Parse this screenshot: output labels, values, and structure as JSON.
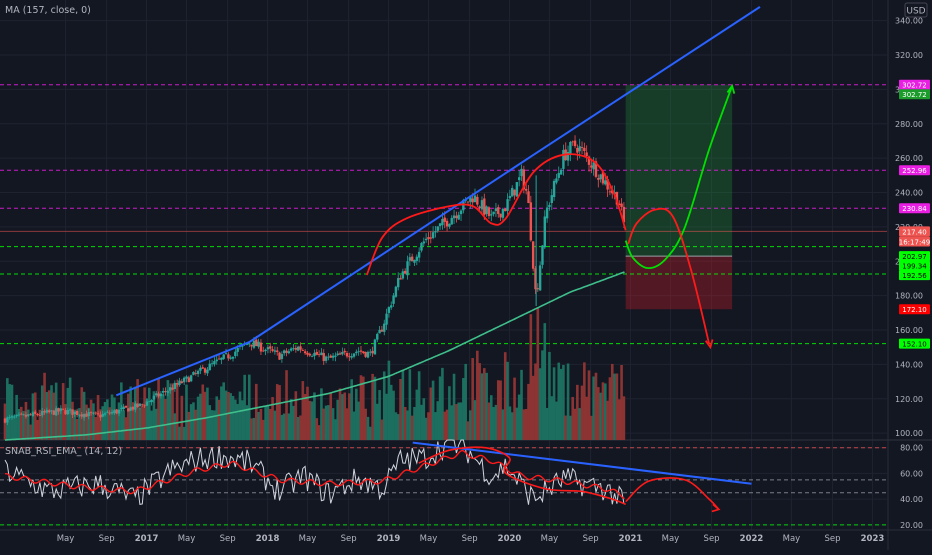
{
  "chart_data": {
    "type": "candlestick",
    "main_pane": {
      "ma_label": "MA (157, close, 0)",
      "currency": "USD",
      "y_ticks": [
        100,
        120,
        140,
        160,
        180,
        200,
        220,
        240,
        260,
        280,
        300,
        320,
        340
      ],
      "y_tick_labels": [
        "100.00",
        "120.00",
        "140.00",
        "160.00",
        "180.00",
        "200.00",
        "220.00",
        "240.00",
        "260.00",
        "280.00",
        "300.00",
        "320.00",
        "340.00"
      ],
      "price_ylim": [
        96,
        352
      ],
      "price_markers": [
        {
          "value": 302.72,
          "label": "302.72",
          "color": "#e91ee3",
          "text_color": "#ffffff"
        },
        {
          "value": 302.72,
          "label": "302.72",
          "color": "#1c9c2b",
          "text_color": "#ffffff"
        },
        {
          "value": 252.96,
          "label": "252.96",
          "color": "#e91ee3",
          "text_color": "#ffffff"
        },
        {
          "value": 230.84,
          "label": "230.84",
          "color": "#e91ee3",
          "text_color": "#ffffff"
        },
        {
          "value": 217.4,
          "label": "217.40",
          "color": "#ef5350",
          "text_color": "#ffffff"
        },
        {
          "value": 211.49,
          "label": "16:17:49",
          "color": "#ef5350",
          "text_color": "#ffffff"
        },
        {
          "value": 202.97,
          "label": "202.97",
          "color": "#00ff00",
          "text_color": "#000000"
        },
        {
          "value": 199.34,
          "label": "199.34",
          "color": "#00ff00",
          "text_color": "#000000"
        },
        {
          "value": 192.56,
          "label": "192.56",
          "color": "#00ff00",
          "text_color": "#000000"
        },
        {
          "value": 172.1,
          "label": "172.10",
          "color": "#ff0000",
          "text_color": "#ffffff"
        },
        {
          "value": 152.1,
          "label": "152.10",
          "color": "#00ff00",
          "text_color": "#000000"
        }
      ],
      "horizontal_levels": [
        {
          "value": 302.72,
          "color": "#e91ee3",
          "style": "dashed"
        },
        {
          "value": 252.96,
          "color": "#e91ee3",
          "style": "dashed"
        },
        {
          "value": 230.84,
          "color": "#e91ee3",
          "style": "dashed"
        },
        {
          "value": 217.4,
          "color": "#ef5350",
          "style": "solid"
        },
        {
          "value": 208.5,
          "color": "#00ff00",
          "style": "dashed"
        },
        {
          "value": 192.56,
          "color": "#00ff00",
          "style": "dashed"
        },
        {
          "value": 152.1,
          "color": "#00ff00",
          "style": "dashed"
        }
      ],
      "position_tool": {
        "start": 2020.96,
        "end": 2021.84,
        "target": 302.72,
        "entry": 202.97,
        "stop": 172.1
      },
      "trendlines": [
        {
          "color": "#2962ff",
          "points": [
            [
              2016.75,
              122
            ],
            [
              2017.85,
              153
            ],
            [
              2020.2,
              262
            ],
            [
              2022.07,
              348
            ]
          ]
        }
      ],
      "hand_curves": [
        {
          "color": "#ff1a1a",
          "points": [
            [
              2018.82,
              192
            ],
            [
              2018.95,
              214
            ],
            [
              2019.15,
              225
            ],
            [
              2019.5,
              232
            ],
            [
              2019.7,
              232
            ],
            [
              2019.85,
              222
            ],
            [
              2019.97,
              225
            ],
            [
              2020.2,
              252
            ],
            [
              2020.45,
              262
            ],
            [
              2020.7,
              258
            ],
            [
              2020.86,
              240
            ],
            [
              2020.96,
              218
            ]
          ]
        },
        {
          "color": "#00e000",
          "points": [
            [
              2020.96,
              212
            ],
            [
              2021.02,
              202
            ],
            [
              2021.15,
              196
            ],
            [
              2021.3,
              202
            ],
            [
              2021.45,
              220
            ],
            [
              2021.65,
              265
            ],
            [
              2021.84,
              302
            ]
          ]
        },
        {
          "color": "#ff1a1a",
          "points": [
            [
              2020.98,
              210
            ],
            [
              2021.05,
              222
            ],
            [
              2021.2,
              230
            ],
            [
              2021.35,
              226
            ],
            [
              2021.5,
              195
            ],
            [
              2021.65,
              152
            ]
          ]
        }
      ],
      "arrows": [
        {
          "color": "#00e000",
          "tip": [
            2021.84,
            302
          ],
          "from": [
            2021.79,
            282
          ]
        },
        {
          "color": "#ff1a1a",
          "tip": [
            2021.66,
            150
          ],
          "from": [
            2021.62,
            166
          ]
        }
      ]
    },
    "rsi_pane": {
      "label": "SNAB_RSI_EMA_ (14, 12)",
      "y_ticks": [
        20,
        40,
        60,
        80
      ],
      "y_tick_labels": [
        "20.00",
        "40.00",
        "60.00",
        "80.00"
      ],
      "ylim": [
        16,
        86
      ],
      "levels": [
        {
          "value": 80,
          "color": "#ef5350",
          "style": "dashed"
        },
        {
          "value": 55,
          "color": "#9598a1",
          "style": "dashed"
        },
        {
          "value": 45,
          "color": "#9598a1",
          "style": "dashed"
        },
        {
          "value": 20,
          "color": "#00ff00",
          "style": "dashed"
        }
      ],
      "trendlines": [
        {
          "color": "#2962ff",
          "points": [
            [
              2019.2,
              84
            ],
            [
              2022.0,
              52
            ]
          ]
        }
      ],
      "hand_curves": [
        {
          "color": "#ff1a1a",
          "points": [
            [
              2019.25,
              68
            ],
            [
              2019.5,
              78
            ],
            [
              2019.8,
              80
            ],
            [
              2020.0,
              72
            ],
            [
              2019.97,
              60
            ],
            [
              2020.3,
              48
            ],
            [
              2020.6,
              46
            ],
            [
              2020.85,
              40
            ],
            [
              2020.96,
              36
            ]
          ]
        },
        {
          "color": "#ff1a1a",
          "points": [
            [
              2020.96,
              38
            ],
            [
              2021.15,
              54
            ],
            [
              2021.45,
              55
            ],
            [
              2021.65,
              40
            ],
            [
              2021.73,
              32
            ]
          ]
        }
      ]
    },
    "x_axis": {
      "range": [
        2015.83,
        2023.12
      ],
      "ticks": [
        {
          "x": 2016.33,
          "label": "May"
        },
        {
          "x": 2016.67,
          "label": "Sep"
        },
        {
          "x": 2017.0,
          "label": "2017"
        },
        {
          "x": 2017.33,
          "label": "May"
        },
        {
          "x": 2017.67,
          "label": "Sep"
        },
        {
          "x": 2018.0,
          "label": "2018"
        },
        {
          "x": 2018.33,
          "label": "May"
        },
        {
          "x": 2018.67,
          "label": "Sep"
        },
        {
          "x": 2019.0,
          "label": "2019"
        },
        {
          "x": 2019.33,
          "label": "May"
        },
        {
          "x": 2019.67,
          "label": "Sep"
        },
        {
          "x": 2020.0,
          "label": "2020"
        },
        {
          "x": 2020.33,
          "label": "May"
        },
        {
          "x": 2020.67,
          "label": "Sep"
        },
        {
          "x": 2021.0,
          "label": "2021"
        },
        {
          "x": 2021.33,
          "label": "May"
        },
        {
          "x": 2021.67,
          "label": "Sep"
        },
        {
          "x": 2022.0,
          "label": "2022"
        },
        {
          "x": 2022.33,
          "label": "May"
        },
        {
          "x": 2022.67,
          "label": "Sep"
        },
        {
          "x": 2023.0,
          "label": "2023"
        }
      ]
    },
    "price_anchors": [
      [
        2015.83,
        108
      ],
      [
        2016.3,
        113
      ],
      [
        2016.6,
        110
      ],
      [
        2016.95,
        116
      ],
      [
        2017.35,
        132
      ],
      [
        2017.7,
        146
      ],
      [
        2017.85,
        153
      ],
      [
        2018.1,
        145
      ],
      [
        2018.25,
        150
      ],
      [
        2018.5,
        143
      ],
      [
        2018.75,
        148
      ],
      [
        2018.85,
        146
      ],
      [
        2018.95,
        162
      ],
      [
        2019.1,
        192
      ],
      [
        2019.3,
        212
      ],
      [
        2019.55,
        228
      ],
      [
        2019.7,
        238
      ],
      [
        2019.85,
        225
      ],
      [
        2019.97,
        232
      ],
      [
        2020.1,
        250
      ],
      [
        2020.15,
        238
      ],
      [
        2020.22,
        178
      ],
      [
        2020.3,
        228
      ],
      [
        2020.45,
        262
      ],
      [
        2020.55,
        268
      ],
      [
        2020.7,
        255
      ],
      [
        2020.8,
        245
      ],
      [
        2020.9,
        236
      ],
      [
        2020.96,
        217.4
      ]
    ],
    "ma_anchors": [
      [
        2015.83,
        96
      ],
      [
        2016.5,
        99
      ],
      [
        2017.0,
        103
      ],
      [
        2017.5,
        109
      ],
      [
        2018.0,
        116
      ],
      [
        2018.5,
        123
      ],
      [
        2019.0,
        133
      ],
      [
        2019.5,
        148
      ],
      [
        2020.0,
        165
      ],
      [
        2020.5,
        182
      ],
      [
        2020.96,
        194
      ]
    ],
    "rsi_anchors": [
      [
        2015.83,
        62
      ],
      [
        2016.2,
        46
      ],
      [
        2016.6,
        52
      ],
      [
        2016.9,
        40
      ],
      [
        2017.2,
        62
      ],
      [
        2017.4,
        70
      ],
      [
        2017.6,
        74
      ],
      [
        2017.85,
        68
      ],
      [
        2018.1,
        46
      ],
      [
        2018.3,
        58
      ],
      [
        2018.5,
        44
      ],
      [
        2018.75,
        56
      ],
      [
        2018.95,
        48
      ],
      [
        2019.1,
        70
      ],
      [
        2019.3,
        72
      ],
      [
        2019.5,
        84
      ],
      [
        2019.65,
        78
      ],
      [
        2019.85,
        58
      ],
      [
        2019.97,
        66
      ],
      [
        2020.2,
        40
      ],
      [
        2020.45,
        56
      ],
      [
        2020.6,
        52
      ],
      [
        2020.8,
        48
      ],
      [
        2020.96,
        36
      ]
    ],
    "rsi_ema_anchors": [
      [
        2015.83,
        58
      ],
      [
        2016.4,
        50
      ],
      [
        2016.9,
        46
      ],
      [
        2017.4,
        62
      ],
      [
        2017.7,
        68
      ],
      [
        2018.1,
        55
      ],
      [
        2018.5,
        52
      ],
      [
        2018.95,
        54
      ],
      [
        2019.3,
        66
      ],
      [
        2019.6,
        76
      ],
      [
        2019.85,
        70
      ],
      [
        2020.1,
        58
      ],
      [
        2020.45,
        54
      ],
      [
        2020.8,
        48
      ],
      [
        2020.96,
        42
      ]
    ],
    "volume_baseline_fraction": 0.3,
    "colors": {
      "up": "#26a69a",
      "down": "#ef5350",
      "volume_up": "#1c6e5f",
      "volume_down": "#8c3433",
      "ma": "#3fbf8b",
      "rsi": "#d1d4dc",
      "rsi_ema": "#ff1a1a",
      "grid": "#1f2330",
      "axis_text": "#b2b5be",
      "background": "#131722"
    }
  }
}
